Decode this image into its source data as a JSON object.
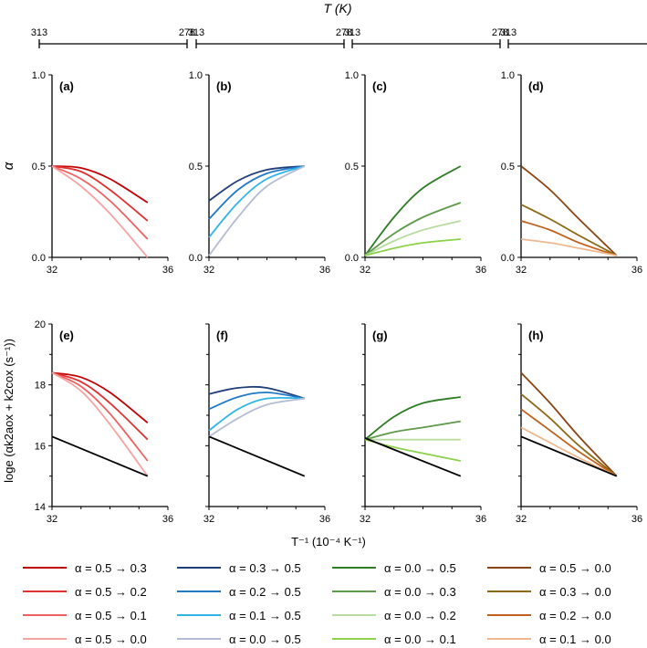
{
  "figure": {
    "top_axis_label": "T (K)",
    "top_axis_ticks": [
      "313",
      "278"
    ],
    "x_label": "T⁻¹ (10⁻⁴ K⁻¹)",
    "y_label_top": "α",
    "y_label_bottom": "loge (αk2aox + k2cox (s⁻¹))"
  },
  "chart_data": [
    {
      "type": "line",
      "panel": "(a)",
      "row": 0,
      "col": 0,
      "xlim": [
        32,
        36
      ],
      "ylim": [
        0,
        1
      ],
      "x_ticks": [
        "32",
        "36"
      ],
      "y_ticks": [
        "0.0",
        "0.5",
        "1.0"
      ],
      "series": [
        {
          "name": "α = 0.5 → 0.3",
          "color": "#C00000",
          "x": [
            32,
            33,
            34,
            35.3
          ],
          "values": [
            0.5,
            0.49,
            0.43,
            0.3
          ]
        },
        {
          "name": "α = 0.5 → 0.2",
          "color": "#E03030",
          "x": [
            32,
            33,
            34,
            35.3
          ],
          "values": [
            0.5,
            0.47,
            0.37,
            0.2
          ]
        },
        {
          "name": "α = 0.5 → 0.1",
          "color": "#F06060",
          "x": [
            32,
            33,
            34,
            35.3
          ],
          "values": [
            0.5,
            0.43,
            0.31,
            0.1
          ]
        },
        {
          "name": "α = 0.5 → 0.0",
          "color": "#F5A3A3",
          "x": [
            32,
            33,
            34,
            35.3
          ],
          "values": [
            0.5,
            0.39,
            0.24,
            0.0
          ]
        }
      ]
    },
    {
      "type": "line",
      "panel": "(b)",
      "row": 0,
      "col": 1,
      "xlim": [
        32,
        36
      ],
      "ylim": [
        0,
        1
      ],
      "x_ticks": [
        "32",
        "36"
      ],
      "y_ticks": [
        "0.0",
        "0.5",
        "1.0"
      ],
      "series": [
        {
          "name": "α = 0.3 → 0.5",
          "color": "#1F3E7A",
          "x": [
            32,
            33,
            34,
            35.3
          ],
          "values": [
            0.31,
            0.42,
            0.48,
            0.5
          ]
        },
        {
          "name": "α = 0.2 → 0.5",
          "color": "#1F78C8",
          "x": [
            32,
            33,
            34,
            35.3
          ],
          "values": [
            0.21,
            0.37,
            0.46,
            0.5
          ]
        },
        {
          "name": "α = 0.1 → 0.5",
          "color": "#2EB4E8",
          "x": [
            32,
            33,
            34,
            35.3
          ],
          "values": [
            0.11,
            0.3,
            0.43,
            0.5
          ]
        },
        {
          "name": "α = 0.0 → 0.5",
          "color": "#B4BCD4",
          "x": [
            32,
            33,
            34,
            35.3
          ],
          "values": [
            0.01,
            0.22,
            0.39,
            0.5
          ]
        }
      ]
    },
    {
      "type": "line",
      "panel": "(c)",
      "row": 0,
      "col": 2,
      "xlim": [
        32,
        36
      ],
      "ylim": [
        0,
        1
      ],
      "x_ticks": [
        "32",
        "36"
      ],
      "y_ticks": [
        "0.0",
        "0.5",
        "1.0"
      ],
      "series": [
        {
          "name": "α = 0.0 → 0.5",
          "color": "#2E7D24",
          "x": [
            32,
            33,
            34,
            35.3
          ],
          "values": [
            0.01,
            0.22,
            0.38,
            0.5
          ]
        },
        {
          "name": "α = 0.0 → 0.3",
          "color": "#5E9A4A",
          "x": [
            32,
            33,
            34,
            35.3
          ],
          "values": [
            0.01,
            0.13,
            0.22,
            0.3
          ]
        },
        {
          "name": "α = 0.0 → 0.2",
          "color": "#B8DCA0",
          "x": [
            32,
            33,
            34,
            35.3
          ],
          "values": [
            0.01,
            0.09,
            0.15,
            0.2
          ]
        },
        {
          "name": "α = 0.0 → 0.1",
          "color": "#8CD24A",
          "x": [
            32,
            33,
            34,
            35.3
          ],
          "values": [
            0.01,
            0.05,
            0.08,
            0.1
          ]
        }
      ]
    },
    {
      "type": "line",
      "panel": "(d)",
      "row": 0,
      "col": 3,
      "xlim": [
        32,
        36
      ],
      "ylim": [
        0,
        1
      ],
      "x_ticks": [
        "32",
        "36"
      ],
      "y_ticks": [
        "0.0",
        "0.5",
        "1.0"
      ],
      "series": [
        {
          "name": "α = 0.5 → 0.0",
          "color": "#8B4513",
          "x": [
            32,
            33,
            34,
            35.3
          ],
          "values": [
            0.5,
            0.37,
            0.21,
            0.01
          ]
        },
        {
          "name": "α = 0.3 → 0.0",
          "color": "#8B6914",
          "x": [
            32,
            33,
            34,
            35.3
          ],
          "values": [
            0.29,
            0.21,
            0.12,
            0.01
          ]
        },
        {
          "name": "α = 0.2 → 0.0",
          "color": "#C0601A",
          "x": [
            32,
            33,
            34,
            35.3
          ],
          "values": [
            0.2,
            0.15,
            0.08,
            0.01
          ]
        },
        {
          "name": "α = 0.1 → 0.0",
          "color": "#F0B890",
          "x": [
            32,
            33,
            34,
            35.3
          ],
          "values": [
            0.1,
            0.08,
            0.05,
            0.01
          ]
        }
      ]
    },
    {
      "type": "line",
      "panel": "(e)",
      "row": 1,
      "col": 0,
      "xlim": [
        32,
        36
      ],
      "ylim": [
        14,
        20
      ],
      "x_ticks": [
        "32",
        "36"
      ],
      "y_ticks": [
        "14",
        "16",
        "18",
        "20"
      ],
      "series": [
        {
          "name": "α = 0.5 → 0.3",
          "color": "#C00000",
          "x": [
            32,
            33,
            34,
            35.3
          ],
          "values": [
            18.4,
            18.25,
            17.75,
            16.75
          ]
        },
        {
          "name": "α = 0.5 → 0.2",
          "color": "#E03030",
          "x": [
            32,
            33,
            34,
            35.3
          ],
          "values": [
            18.4,
            18.1,
            17.4,
            16.2
          ]
        },
        {
          "name": "α = 0.5 → 0.1",
          "color": "#F06060",
          "x": [
            32,
            33,
            34,
            35.3
          ],
          "values": [
            18.4,
            17.95,
            17.05,
            15.5
          ]
        },
        {
          "name": "α = 0.5 → 0.0",
          "color": "#F5A3A3",
          "x": [
            32,
            33,
            34,
            35.3
          ],
          "values": [
            18.4,
            17.8,
            16.7,
            15.0
          ]
        },
        {
          "name": "reference",
          "color": "#000000",
          "x": [
            32,
            35.3
          ],
          "values": [
            16.3,
            15.0
          ]
        }
      ]
    },
    {
      "type": "line",
      "panel": "(f)",
      "row": 1,
      "col": 1,
      "xlim": [
        32,
        36
      ],
      "ylim": [
        14,
        20
      ],
      "x_ticks": [
        "32",
        "36"
      ],
      "y_ticks": [
        "14",
        "16",
        "18",
        "20"
      ],
      "series": [
        {
          "name": "α = 0.3 → 0.5",
          "color": "#1F3E7A",
          "x": [
            32,
            33,
            34,
            35.3
          ],
          "values": [
            17.7,
            17.9,
            17.9,
            17.55
          ]
        },
        {
          "name": "α = 0.2 → 0.5",
          "color": "#1F78C8",
          "x": [
            32,
            33,
            34,
            35.3
          ],
          "values": [
            17.2,
            17.6,
            17.75,
            17.55
          ]
        },
        {
          "name": "α = 0.1 → 0.5",
          "color": "#2EB4E8",
          "x": [
            32,
            33,
            34,
            35.3
          ],
          "values": [
            16.5,
            17.2,
            17.55,
            17.55
          ]
        },
        {
          "name": "α = 0.0 → 0.5",
          "color": "#B4BCD4",
          "x": [
            32,
            33,
            34,
            35.3
          ],
          "values": [
            16.3,
            16.9,
            17.35,
            17.55
          ]
        },
        {
          "name": "reference",
          "color": "#000000",
          "x": [
            32,
            35.3
          ],
          "values": [
            16.3,
            15.0
          ]
        }
      ]
    },
    {
      "type": "line",
      "panel": "(g)",
      "row": 1,
      "col": 2,
      "xlim": [
        32,
        36
      ],
      "ylim": [
        14,
        20
      ],
      "x_ticks": [
        "32",
        "36"
      ],
      "y_ticks": [
        "14",
        "16",
        "18",
        "20"
      ],
      "series": [
        {
          "name": "α = 0.0 → 0.5",
          "color": "#2E7D24",
          "x": [
            32,
            33,
            34,
            35.3
          ],
          "values": [
            16.2,
            16.95,
            17.4,
            17.6
          ]
        },
        {
          "name": "α = 0.0 → 0.3",
          "color": "#5E9A4A",
          "x": [
            32,
            33,
            34,
            35.3
          ],
          "values": [
            16.2,
            16.45,
            16.6,
            16.8
          ]
        },
        {
          "name": "α = 0.0 → 0.2",
          "color": "#B8DCA0",
          "x": [
            32,
            33,
            34,
            35.3
          ],
          "values": [
            16.2,
            16.2,
            16.2,
            16.2
          ]
        },
        {
          "name": "α = 0.0 → 0.1",
          "color": "#8CD24A",
          "x": [
            32,
            33,
            34,
            35.3
          ],
          "values": [
            16.2,
            15.95,
            15.75,
            15.5
          ]
        },
        {
          "name": "reference",
          "color": "#000000",
          "x": [
            32,
            35.3
          ],
          "values": [
            16.25,
            15.0
          ]
        }
      ]
    },
    {
      "type": "line",
      "panel": "(h)",
      "row": 1,
      "col": 3,
      "xlim": [
        32,
        36
      ],
      "ylim": [
        14,
        20
      ],
      "x_ticks": [
        "32",
        "36"
      ],
      "y_ticks": [
        "14",
        "16",
        "18",
        "20"
      ],
      "series": [
        {
          "name": "α = 0.5 → 0.0",
          "color": "#8B4513",
          "x": [
            32,
            33,
            34,
            35.3
          ],
          "values": [
            18.4,
            17.4,
            16.3,
            15.0
          ]
        },
        {
          "name": "α = 0.3 → 0.0",
          "color": "#8B6914",
          "x": [
            32,
            33,
            34,
            35.3
          ],
          "values": [
            17.7,
            16.9,
            16.0,
            15.0
          ]
        },
        {
          "name": "α = 0.2 → 0.0",
          "color": "#C0601A",
          "x": [
            32,
            33,
            34,
            35.3
          ],
          "values": [
            17.2,
            16.5,
            15.8,
            15.0
          ]
        },
        {
          "name": "α = 0.1 → 0.0",
          "color": "#F0B890",
          "x": [
            32,
            33,
            34,
            35.3
          ],
          "values": [
            16.6,
            16.1,
            15.6,
            15.0
          ]
        },
        {
          "name": "reference",
          "color": "#000000",
          "x": [
            32,
            35.3
          ],
          "values": [
            16.3,
            15.0
          ]
        }
      ]
    }
  ],
  "legend": {
    "columns": [
      [
        {
          "label": "α = 0.5 → 0.3",
          "color": "#C00000"
        },
        {
          "label": "α = 0.5 → 0.2",
          "color": "#E03030"
        },
        {
          "label": "α = 0.5 → 0.1",
          "color": "#F06060"
        },
        {
          "label": "α = 0.5 → 0.0",
          "color": "#F5A3A3"
        }
      ],
      [
        {
          "label": "α = 0.3 → 0.5",
          "color": "#1F3E7A"
        },
        {
          "label": "α = 0.2 → 0.5",
          "color": "#1F78C8"
        },
        {
          "label": "α = 0.1 → 0.5",
          "color": "#2EB4E8"
        },
        {
          "label": "α = 0.0 → 0.5",
          "color": "#B4BCD4"
        }
      ],
      [
        {
          "label": "α = 0.0 → 0.5",
          "color": "#2E7D24"
        },
        {
          "label": "α = 0.0 → 0.3",
          "color": "#5E9A4A"
        },
        {
          "label": "α = 0.0 → 0.2",
          "color": "#B8DCA0"
        },
        {
          "label": "α = 0.0 → 0.1",
          "color": "#8CD24A"
        }
      ],
      [
        {
          "label": "α = 0.5 → 0.0",
          "color": "#8B4513"
        },
        {
          "label": "α = 0.3 → 0.0",
          "color": "#8B6914"
        },
        {
          "label": "α = 0.2 → 0.0",
          "color": "#C0601A"
        },
        {
          "label": "α = 0.1 → 0.0",
          "color": "#F0B890"
        }
      ]
    ]
  }
}
